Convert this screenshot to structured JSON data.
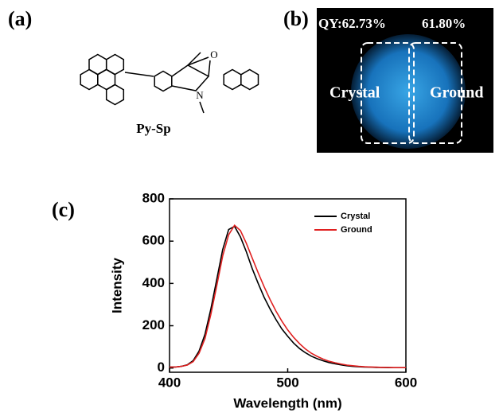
{
  "panels": {
    "a": "(a)",
    "b": "(b)",
    "c": "(c)"
  },
  "molecule": {
    "name": "Py-Sp",
    "atoms": [
      "O",
      "N"
    ]
  },
  "photo": {
    "qy_left": "QY:62.73%",
    "qy_right": "61.80%",
    "left_label": "Crystal",
    "right_label": "Ground"
  },
  "chart_data": {
    "type": "line",
    "x_label": "Wavelength (nm)",
    "y_label": "Intensity",
    "x": [
      400,
      405,
      410,
      415,
      420,
      425,
      430,
      435,
      440,
      445,
      450,
      455,
      460,
      465,
      470,
      475,
      480,
      485,
      490,
      495,
      500,
      505,
      510,
      515,
      520,
      525,
      530,
      535,
      540,
      545,
      550,
      555,
      560,
      565,
      570,
      575,
      580,
      585,
      590,
      595,
      600
    ],
    "series": [
      {
        "name": "Crystal",
        "color": "#000000",
        "values": [
          5,
          5,
          8,
          15,
          35,
          80,
          160,
          280,
          420,
          560,
          655,
          670,
          620,
          550,
          470,
          400,
          335,
          280,
          230,
          185,
          150,
          118,
          92,
          72,
          56,
          44,
          34,
          26,
          20,
          15,
          11,
          8,
          6,
          5,
          4,
          3,
          3,
          2,
          2,
          2,
          2
        ]
      },
      {
        "name": "Ground",
        "color": "#e02020",
        "values": [
          5,
          5,
          8,
          14,
          30,
          70,
          140,
          255,
          390,
          530,
          630,
          675,
          650,
          590,
          520,
          450,
          385,
          325,
          270,
          222,
          180,
          145,
          115,
          90,
          70,
          55,
          42,
          32,
          25,
          19,
          14,
          11,
          8,
          6,
          5,
          4,
          3,
          3,
          2,
          2,
          2
        ]
      }
    ],
    "xlim": [
      400,
      600
    ],
    "xticks": [
      400,
      500,
      600
    ],
    "ylim": [
      -20,
      800
    ],
    "yticks": [
      0,
      200,
      400,
      600,
      800
    ],
    "legend": "upper right",
    "grid": false
  }
}
